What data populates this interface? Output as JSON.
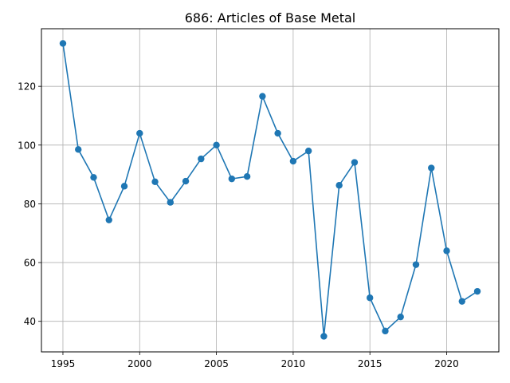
{
  "chart_data": {
    "type": "line",
    "title": "686: Articles of Base Metal",
    "xlabel": "",
    "ylabel": "",
    "grid": true,
    "legend": "none",
    "xlim": [
      1993.6,
      2023.4
    ],
    "ylim": [
      29.6,
      139.6
    ],
    "xticks": [
      1995,
      2000,
      2005,
      2010,
      2015,
      2020
    ],
    "yticks": [
      40,
      60,
      80,
      100,
      120
    ],
    "series": [
      {
        "color": "#1f77b4",
        "marker": "circle",
        "x": [
          1995,
          1996,
          1997,
          1998,
          1999,
          2000,
          2001,
          2002,
          2003,
          2004,
          2005,
          2006,
          2007,
          2008,
          2009,
          2010,
          2011,
          2012,
          2013,
          2014,
          2015,
          2016,
          2017,
          2018,
          2019,
          2020,
          2021,
          2022
        ],
        "y": [
          134.6,
          98.5,
          89.0,
          74.5,
          86.0,
          104.0,
          87.5,
          80.5,
          87.7,
          95.3,
          100.0,
          88.5,
          89.3,
          116.6,
          104.0,
          94.5,
          98.0,
          34.9,
          86.3,
          94.1,
          48.0,
          36.7,
          41.5,
          59.3,
          92.2,
          64.0,
          46.8,
          50.2
        ]
      }
    ]
  }
}
